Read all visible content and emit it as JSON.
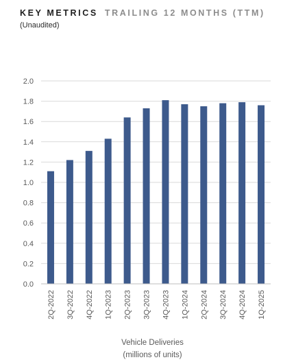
{
  "header": {
    "title": "KEY METRICS",
    "title_suffix": "TRAILING 12 MONTHS (TTM)",
    "subtitle": "(Unaudited)"
  },
  "chart_data": {
    "type": "bar",
    "title": "Vehicle Deliveries",
    "subtitle": "(millions of units)",
    "categories": [
      "2Q-2022",
      "3Q-2022",
      "4Q-2022",
      "1Q-2023",
      "2Q-2023",
      "3Q-2023",
      "4Q-2023",
      "1Q-2024",
      "2Q-2024",
      "3Q-2024",
      "4Q-2024",
      "1Q-2025"
    ],
    "values": [
      1.11,
      1.22,
      1.31,
      1.43,
      1.64,
      1.73,
      1.81,
      1.77,
      1.75,
      1.78,
      1.79,
      1.76
    ],
    "ylim": [
      0,
      2.0
    ],
    "yticks": [
      "0.0",
      "0.2",
      "0.4",
      "0.6",
      "0.8",
      "1.0",
      "1.2",
      "1.4",
      "1.6",
      "1.8",
      "2.0"
    ],
    "grid": true,
    "bar_color": "#3d5a8c",
    "legend": "none"
  }
}
